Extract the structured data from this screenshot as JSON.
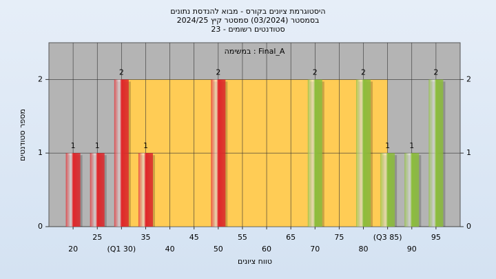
{
  "chart_data": {
    "type": "bar",
    "title": [
      "היסטוגרמת ציונים בקורס - מבוא להנדסת נתונים",
      "בסמסטר (03/2024) סמסטר קיץ 2024/25",
      "סטודנטים רשומים - 23"
    ],
    "annotation": "במשימה : Final_A",
    "x_label": "טווח ציונים",
    "y_label": "מספר סטודנטים",
    "x": [
      20,
      25,
      30,
      35,
      50,
      70,
      80,
      85,
      90,
      95
    ],
    "values": [
      1,
      1,
      2,
      1,
      2,
      2,
      2,
      1,
      1,
      2
    ],
    "colors": [
      "#e0262a",
      "#e0262a",
      "#e0262a",
      "#e0262a",
      "#e0262a",
      "#8cbd3c",
      "#8cbd3c",
      "#8cbd3c",
      "#8cbd3c",
      "#8cbd3c"
    ],
    "band": {
      "from": 30,
      "to": 85,
      "color": "#ffcc55"
    },
    "xlim": [
      15,
      100
    ],
    "xticks": [
      20,
      25,
      {
        "value": 30,
        "label": "(Q1 30)"
      },
      35,
      40,
      45,
      50,
      55,
      60,
      65,
      70,
      75,
      80,
      {
        "value": 85,
        "label": "(Q3 85)"
      },
      90,
      95
    ],
    "ylim": [
      0,
      2.5
    ],
    "yticks": [
      0,
      1,
      2
    ],
    "grid": true,
    "background": "#b4b4b4"
  }
}
